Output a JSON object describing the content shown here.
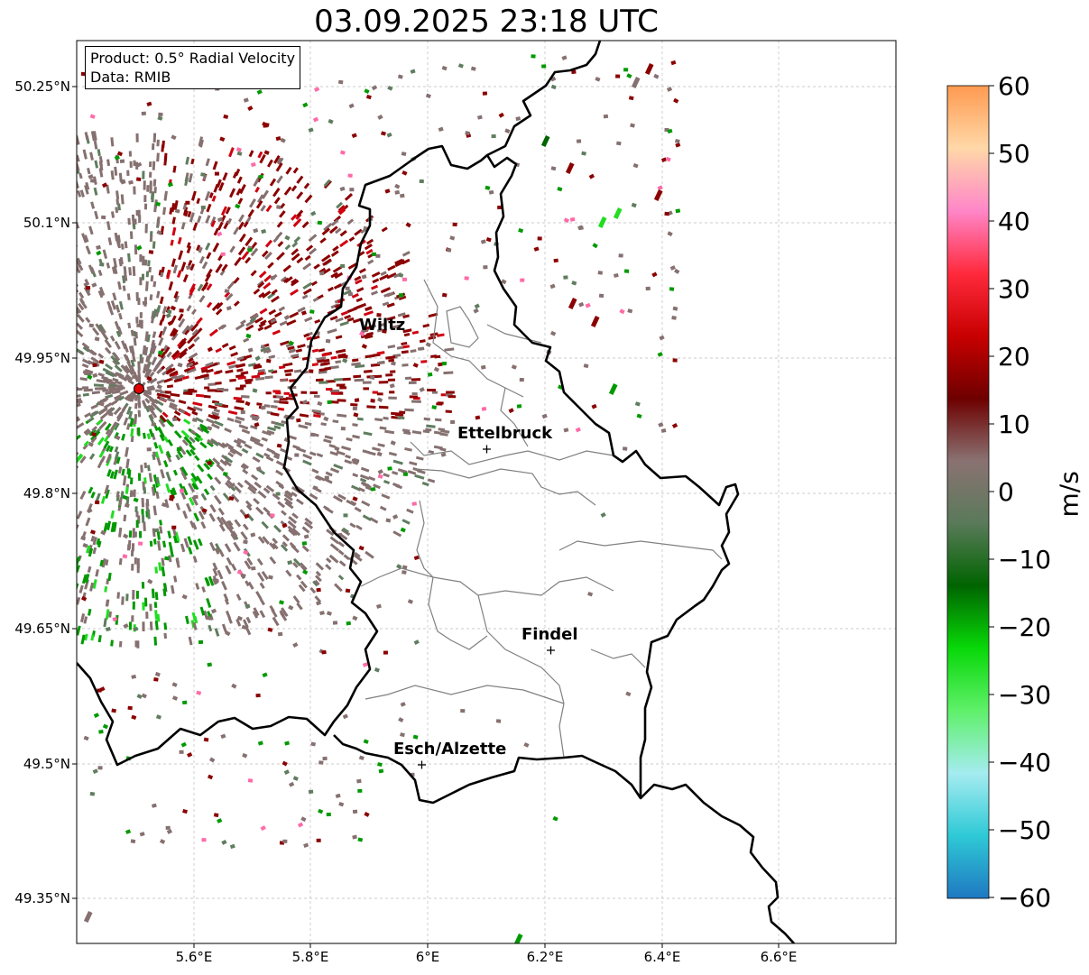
{
  "title": "03.09.2025 23:18 UTC",
  "info_box": {
    "product": "Product: 0.5° Radial Velocity",
    "data": "Data: RMIB"
  },
  "latitude_ticks": [
    "50.25°N",
    "50.1°N",
    "49.95°N",
    "49.8°N",
    "49.65°N",
    "49.5°N",
    "49.35°N"
  ],
  "longitude_ticks": [
    "5.6°E",
    "5.8°E",
    "6°E",
    "6.2°E",
    "6.4°E",
    "6.6°E"
  ],
  "cities": [
    "Wiltz",
    "Ettelbruck",
    "Findel",
    "Esch/Alzette"
  ],
  "colorbar": {
    "unit": "m/s",
    "ticks": [
      "60",
      "50",
      "40",
      "30",
      "20",
      "10",
      "0",
      "−10",
      "−20",
      "−30",
      "−40",
      "−50",
      "−60"
    ],
    "range": [
      -60,
      60
    ],
    "stops": [
      "#1f78c1",
      "#2ec9d6",
      "#a5ecf0",
      "#5ff06a",
      "#08d808",
      "#006400",
      "#5a7a5a",
      "#8a7272",
      "#6e0000",
      "#c80000",
      "#ff2a3c",
      "#ff86c8",
      "#ffd8a8",
      "#ff9a50"
    ]
  },
  "colors": {
    "outgoing": "#8b0000",
    "incoming": "#009900",
    "near_zero": "#867070",
    "radar_site": "#e00000"
  }
}
